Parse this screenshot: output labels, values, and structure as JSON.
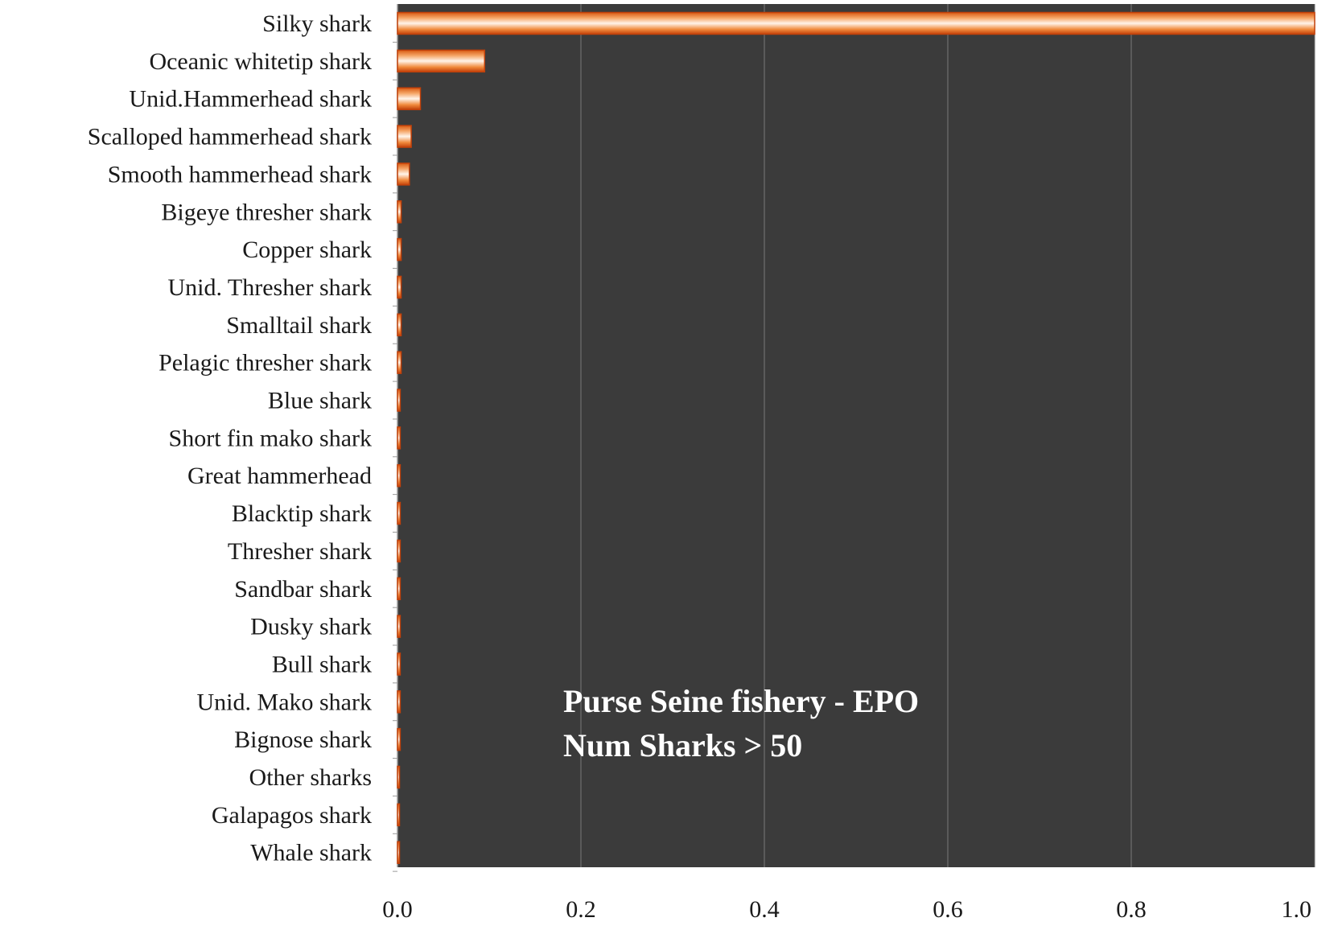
{
  "chart_data": {
    "type": "bar",
    "orientation": "horizontal",
    "categories": [
      "Silky shark",
      "Oceanic whitetip shark",
      "Unid.Hammerhead shark",
      "Scalloped hammerhead shark",
      "Smooth hammerhead shark",
      "Bigeye thresher shark",
      "Copper shark",
      "Unid. Thresher shark",
      "Smalltail shark",
      "Pelagic thresher shark",
      "Blue shark",
      "Short fin mako shark",
      "Great hammerhead",
      "Blacktip shark",
      "Thresher shark",
      "Sandbar shark",
      "Dusky shark",
      "Bull shark",
      "Unid. Mako shark",
      "Bignose shark",
      "Other sharks",
      "Galapagos shark",
      "Whale shark"
    ],
    "values": [
      1.0,
      0.095,
      0.025,
      0.015,
      0.013,
      0.004,
      0.004,
      0.004,
      0.004,
      0.004,
      0.003,
      0.003,
      0.003,
      0.003,
      0.003,
      0.003,
      0.003,
      0.003,
      0.003,
      0.003,
      0.002,
      0.002,
      0.001
    ],
    "xlim": [
      0.0,
      1.0
    ],
    "xticks": [
      "0.0",
      "0.2",
      "0.4",
      "0.6",
      "0.8",
      "1.0"
    ],
    "grid": "vertical",
    "annotation": [
      "Purse Seine fishery - EPO",
      "Num Sharks > 50"
    ],
    "colors": {
      "plot_background": "#3b3b3b",
      "bar_edge": "#c2410a",
      "bar_mid": "#f08a3c",
      "bar_highlight": "#fff4ea",
      "gridline": "#7a7a7a",
      "annotation_text": "#ffffff",
      "label_text": "#1a1a1a"
    }
  }
}
